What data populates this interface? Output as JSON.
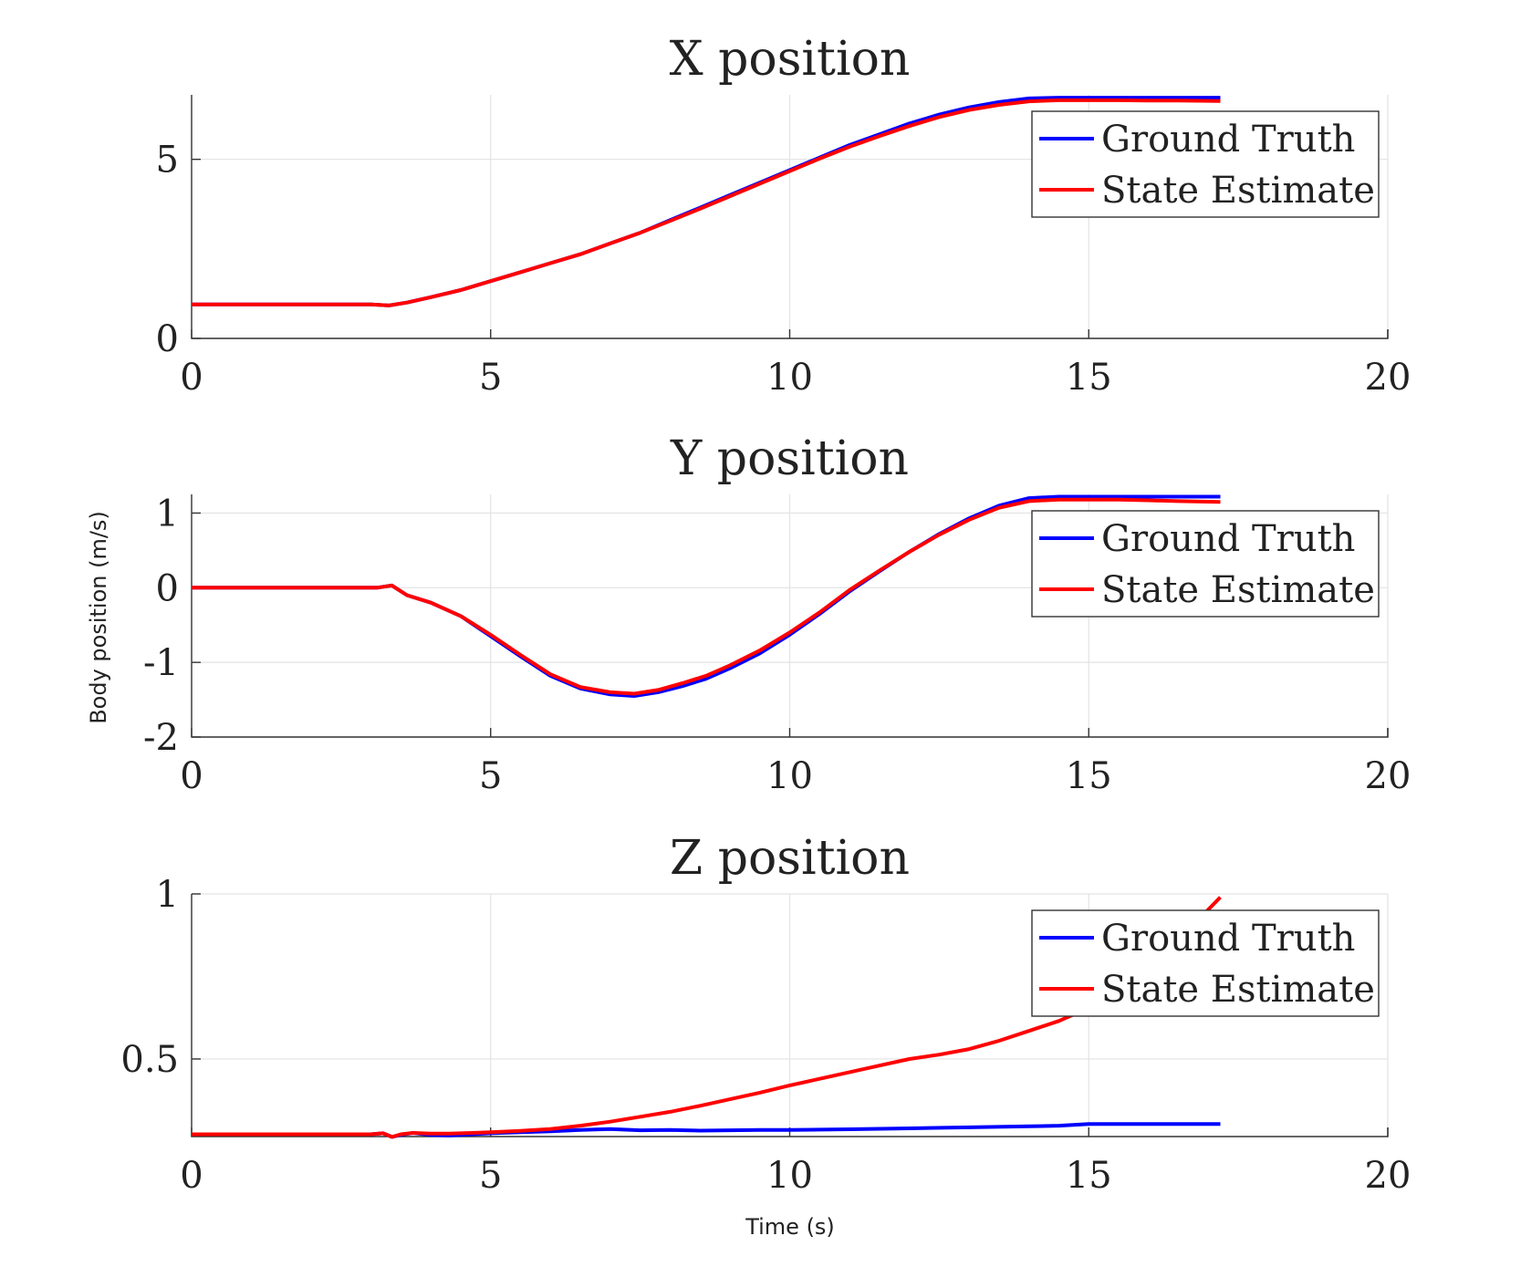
{
  "figure": {
    "ylabel": "Body position (m/s)",
    "xlabel": "Time (s)"
  },
  "chart_data": [
    {
      "type": "line",
      "title": "X position",
      "xlim": [
        0,
        20
      ],
      "ylim": [
        0,
        6.8
      ],
      "xticks": [
        0,
        5,
        10,
        15,
        20
      ],
      "yticks": [
        0,
        5
      ],
      "x_tick_labels": [
        "0",
        "5",
        "10",
        "15",
        "20"
      ],
      "y_tick_labels": [
        "0",
        "5"
      ],
      "grid": true,
      "legend_position": "top-right",
      "series": [
        {
          "name": "Ground Truth",
          "color": "#0000ff",
          "x": [
            0,
            3.0,
            3.3,
            3.6,
            4.0,
            4.5,
            5.0,
            5.5,
            6.0,
            6.5,
            7.0,
            7.5,
            8.0,
            8.5,
            9.0,
            9.5,
            10.0,
            10.5,
            11.0,
            11.5,
            12.0,
            12.5,
            13.0,
            13.5,
            14.0,
            14.5,
            15.0,
            15.5,
            16.0,
            16.5,
            17.2
          ],
          "y": [
            0.95,
            0.95,
            0.92,
            1.0,
            1.15,
            1.35,
            1.6,
            1.85,
            2.1,
            2.35,
            2.65,
            2.95,
            3.3,
            3.65,
            4.0,
            4.35,
            4.7,
            5.05,
            5.4,
            5.7,
            6.0,
            6.25,
            6.45,
            6.6,
            6.7,
            6.72,
            6.72,
            6.72,
            6.72,
            6.72,
            6.72
          ]
        },
        {
          "name": "State Estimate",
          "color": "#ff0000",
          "x": [
            0,
            3.0,
            3.3,
            3.6,
            4.0,
            4.5,
            5.0,
            5.5,
            6.0,
            6.5,
            7.0,
            7.5,
            8.0,
            8.5,
            9.0,
            9.5,
            10.0,
            10.5,
            11.0,
            11.5,
            12.0,
            12.5,
            13.0,
            13.5,
            14.0,
            14.5,
            15.0,
            15.5,
            16.0,
            16.5,
            17.2
          ],
          "y": [
            0.95,
            0.95,
            0.92,
            1.0,
            1.15,
            1.35,
            1.6,
            1.85,
            2.1,
            2.35,
            2.65,
            2.95,
            3.28,
            3.62,
            3.97,
            4.32,
            4.67,
            5.02,
            5.35,
            5.65,
            5.93,
            6.18,
            6.38,
            6.52,
            6.62,
            6.65,
            6.65,
            6.65,
            6.64,
            6.64,
            6.63
          ]
        }
      ]
    },
    {
      "type": "line",
      "title": "Y position",
      "xlim": [
        0,
        20
      ],
      "ylim": [
        -2,
        1.25
      ],
      "xticks": [
        0,
        5,
        10,
        15,
        20
      ],
      "yticks": [
        -2,
        -1,
        0,
        1
      ],
      "x_tick_labels": [
        "0",
        "5",
        "10",
        "15",
        "20"
      ],
      "y_tick_labels": [
        "-2",
        "-1",
        "0",
        "1"
      ],
      "grid": true,
      "legend_position": "top-right",
      "series": [
        {
          "name": "Ground Truth",
          "color": "#0000ff",
          "x": [
            0,
            3.1,
            3.35,
            3.6,
            4.0,
            4.5,
            5.0,
            5.5,
            6.0,
            6.5,
            7.0,
            7.4,
            7.8,
            8.2,
            8.6,
            9.0,
            9.5,
            10.0,
            10.5,
            11.0,
            11.5,
            12.0,
            12.5,
            13.0,
            13.5,
            14.0,
            14.5,
            15.0,
            15.5,
            16.0,
            16.5,
            17.2
          ],
          "y": [
            0,
            0,
            0.03,
            -0.1,
            -0.2,
            -0.38,
            -0.65,
            -0.92,
            -1.18,
            -1.35,
            -1.43,
            -1.45,
            -1.4,
            -1.32,
            -1.22,
            -1.08,
            -0.88,
            -0.63,
            -0.35,
            -0.05,
            0.22,
            0.48,
            0.72,
            0.93,
            1.1,
            1.2,
            1.22,
            1.22,
            1.22,
            1.22,
            1.22,
            1.22
          ]
        },
        {
          "name": "State Estimate",
          "color": "#ff0000",
          "x": [
            0,
            3.1,
            3.35,
            3.6,
            4.0,
            4.5,
            5.0,
            5.5,
            6.0,
            6.5,
            7.0,
            7.4,
            7.8,
            8.2,
            8.6,
            9.0,
            9.5,
            10.0,
            10.5,
            11.0,
            11.5,
            12.0,
            12.5,
            13.0,
            13.5,
            14.0,
            14.5,
            15.0,
            15.5,
            16.0,
            16.5,
            17.2
          ],
          "y": [
            0,
            0,
            0.03,
            -0.1,
            -0.2,
            -0.38,
            -0.63,
            -0.9,
            -1.16,
            -1.33,
            -1.4,
            -1.42,
            -1.37,
            -1.28,
            -1.18,
            -1.04,
            -0.84,
            -0.6,
            -0.33,
            -0.03,
            0.23,
            0.48,
            0.71,
            0.91,
            1.07,
            1.16,
            1.18,
            1.18,
            1.18,
            1.17,
            1.16,
            1.15
          ]
        }
      ]
    },
    {
      "type": "line",
      "title": "Z position",
      "xlim": [
        0,
        20
      ],
      "ylim": [
        0.265,
        1.0
      ],
      "xticks": [
        0,
        5,
        10,
        15,
        20
      ],
      "yticks": [
        0.5,
        1
      ],
      "x_tick_labels": [
        "0",
        "5",
        "10",
        "15",
        "20"
      ],
      "y_tick_labels": [
        "0.5",
        "1"
      ],
      "grid": true,
      "legend_position": "top-right",
      "series": [
        {
          "name": "Ground Truth",
          "color": "#0000ff",
          "x": [
            0,
            3.0,
            3.2,
            3.35,
            3.5,
            3.7,
            4.0,
            4.3,
            4.7,
            5.0,
            5.5,
            6.0,
            6.5,
            7.0,
            7.5,
            8.0,
            8.5,
            9.0,
            9.5,
            10.0,
            11.0,
            12.0,
            13.0,
            14.0,
            14.5,
            15.0,
            16.0,
            17.2
          ],
          "y": [
            0.272,
            0.272,
            0.275,
            0.264,
            0.27,
            0.276,
            0.27,
            0.268,
            0.272,
            0.275,
            0.278,
            0.281,
            0.285,
            0.288,
            0.284,
            0.285,
            0.283,
            0.284,
            0.285,
            0.285,
            0.287,
            0.29,
            0.293,
            0.296,
            0.298,
            0.303,
            0.303,
            0.303
          ]
        },
        {
          "name": "State Estimate",
          "color": "#ff0000",
          "x": [
            0,
            3.0,
            3.2,
            3.35,
            3.5,
            3.7,
            4.0,
            4.3,
            4.7,
            5.0,
            5.5,
            6.0,
            6.5,
            7.0,
            7.5,
            8.0,
            8.5,
            9.0,
            9.5,
            10.0,
            10.5,
            11.0,
            11.5,
            12.0,
            12.5,
            13.0,
            13.5,
            14.0,
            14.5,
            15.0,
            15.5,
            16.0,
            16.5,
            17.2
          ],
          "y": [
            0.272,
            0.272,
            0.275,
            0.264,
            0.272,
            0.276,
            0.274,
            0.274,
            0.276,
            0.278,
            0.282,
            0.288,
            0.298,
            0.31,
            0.325,
            0.34,
            0.358,
            0.378,
            0.398,
            0.42,
            0.44,
            0.46,
            0.48,
            0.5,
            0.513,
            0.53,
            0.555,
            0.585,
            0.615,
            0.655,
            0.71,
            0.78,
            0.86,
            0.99
          ]
        }
      ]
    }
  ]
}
